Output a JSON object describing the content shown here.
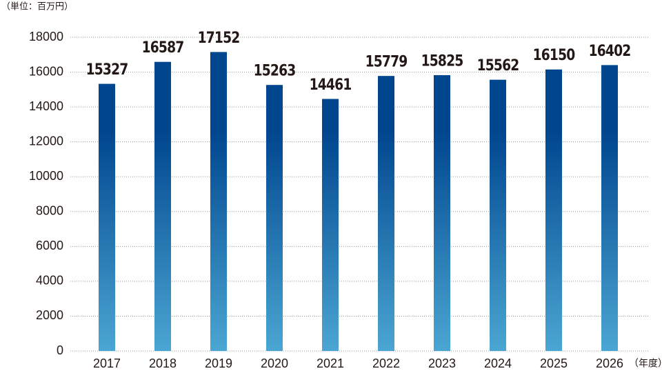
{
  "chart_data": {
    "type": "bar",
    "unit_label": "（単位：百万円）",
    "x_unit_label": "（年度）",
    "categories": [
      "2017",
      "2018",
      "2019",
      "2020",
      "2021",
      "2022",
      "2023",
      "2024",
      "2025",
      "2026"
    ],
    "values": [
      15327,
      16587,
      17152,
      15263,
      14461,
      15779,
      15825,
      15562,
      16150,
      16402
    ],
    "color": "#00468f",
    "gradient_end": "#4ba6d2",
    "ylim": [
      0,
      18000
    ],
    "yticks": [
      0,
      2000,
      4000,
      6000,
      8000,
      10000,
      12000,
      14000,
      16000,
      18000
    ],
    "grid": true
  }
}
